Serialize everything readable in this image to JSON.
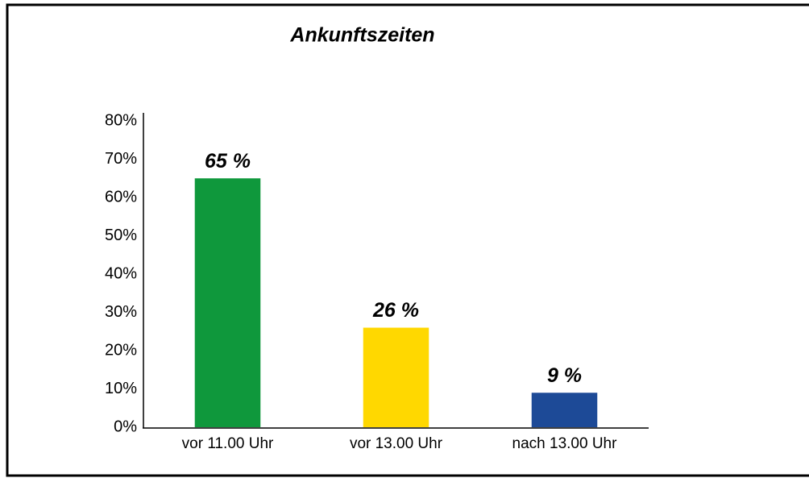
{
  "chart_data": {
    "type": "bar",
    "title": "Ankunftszeiten",
    "categories": [
      "vor 11.00 Uhr",
      "vor 13.00 Uhr",
      "nach 13.00 Uhr"
    ],
    "values": [
      65,
      26,
      9
    ],
    "value_labels": [
      "65 %",
      "26 %",
      "9 %"
    ],
    "colors": [
      "#0f983c",
      "#ffd800",
      "#1d4a97"
    ],
    "ylim": [
      0,
      80
    ],
    "yticks": [
      {
        "value": 0,
        "label": "0%"
      },
      {
        "value": 10,
        "label": "10%"
      },
      {
        "value": 20,
        "label": "20%"
      },
      {
        "value": 30,
        "label": "30%"
      },
      {
        "value": 40,
        "label": "40%"
      },
      {
        "value": 50,
        "label": "50%"
      },
      {
        "value": 60,
        "label": "60%"
      },
      {
        "value": 70,
        "label": "70%"
      },
      {
        "value": 80,
        "label": "80%"
      }
    ],
    "grid": false
  }
}
